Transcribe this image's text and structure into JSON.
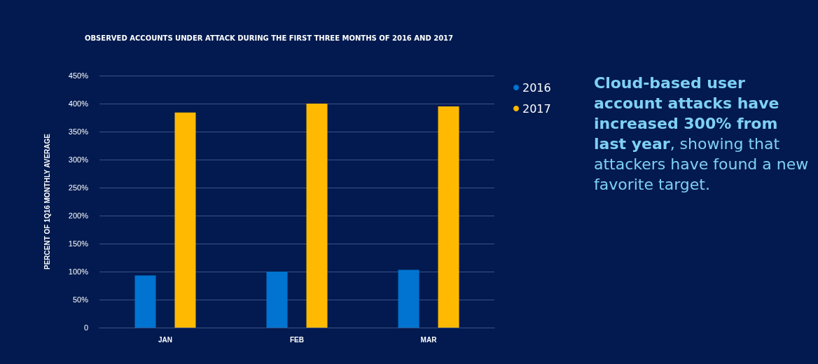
{
  "chart_data": {
    "type": "bar",
    "title": "OBSERVED ACCOUNTS UNDER ATTACK DURING THE FIRST THREE MONTHS OF 2016 AND 2017",
    "ylabel": "PERCENT OF 1Q16 MONTHLY AVERAGE",
    "categories": [
      "JAN",
      "FEB",
      "MAR"
    ],
    "series": [
      {
        "name": "2016",
        "color": "#0074d0",
        "values": [
          93,
          100,
          103
        ]
      },
      {
        "name": "2017",
        "color": "#ffb900",
        "values": [
          384,
          400,
          395
        ]
      }
    ],
    "ylim": [
      0,
      450
    ],
    "yticks": [
      0,
      {
        "value": 50,
        "label": "50%"
      },
      {
        "value": 100,
        "label": "100%"
      },
      {
        "value": 150,
        "label": "150%"
      },
      {
        "value": 200,
        "label": "200%"
      },
      {
        "value": 250,
        "label": "250%"
      },
      {
        "value": 300,
        "label": "300%"
      },
      {
        "value": 350,
        "label": "350%"
      },
      {
        "value": 400,
        "label": "400%"
      },
      {
        "value": 450,
        "label": "450%"
      }
    ],
    "grid": "y",
    "legend": "right",
    "annotations": [
      "Cloud-based user account attacks have increased 300% from last year",
      ", showing that attackers have found a new favorite target."
    ]
  }
}
